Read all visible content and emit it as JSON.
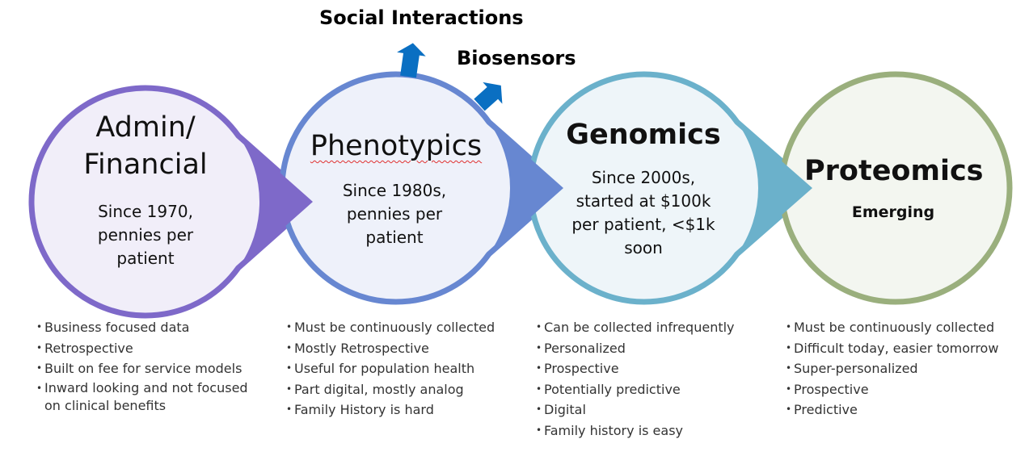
{
  "callouts": {
    "social": "Social Interactions",
    "biosensors": "Biosensors"
  },
  "stages": [
    {
      "title_lines": [
        "Admin/",
        "Financial"
      ],
      "sub_lines": [
        "Since 1970,",
        "pennies per",
        "patient"
      ],
      "color": "#7E69C9",
      "fill": "#F1EEF9",
      "bullets": [
        "Business focused data",
        "Retrospective",
        "Built on fee for service models",
        "Inward looking and not focused on clinical benefits"
      ]
    },
    {
      "title_lines": [
        "Phenotypics"
      ],
      "sub_lines": [
        "Since 1980s,",
        "pennies per",
        "patient"
      ],
      "color": "#6787D1",
      "fill": "#EEF1FA",
      "bullets": [
        "Must be continuously collected",
        "Mostly Retrospective",
        "Useful for population health",
        "Part digital, mostly analog",
        "Family History is hard"
      ]
    },
    {
      "title_lines": [
        "Genomics"
      ],
      "sub_lines": [
        "Since 2000s,",
        "started at $100k",
        "per patient, <$1k",
        "soon"
      ],
      "color": "#6BB1CB",
      "fill": "#EEF5F9",
      "bullets": [
        "Can be collected infrequently",
        "Personalized",
        "Prospective",
        "Potentially predictive",
        "Digital",
        "Family history is easy"
      ]
    },
    {
      "title_lines": [
        "Proteomics"
      ],
      "emerging": "Emerging",
      "color": "#9AAF7D",
      "fill": "#F3F6F0",
      "bullets": [
        "Must be continuously collected",
        "Difficult today, easier tomorrow",
        "Super-personalized",
        "Prospective",
        "Predictive"
      ]
    }
  ],
  "arrow_color": "#0A6FC2"
}
